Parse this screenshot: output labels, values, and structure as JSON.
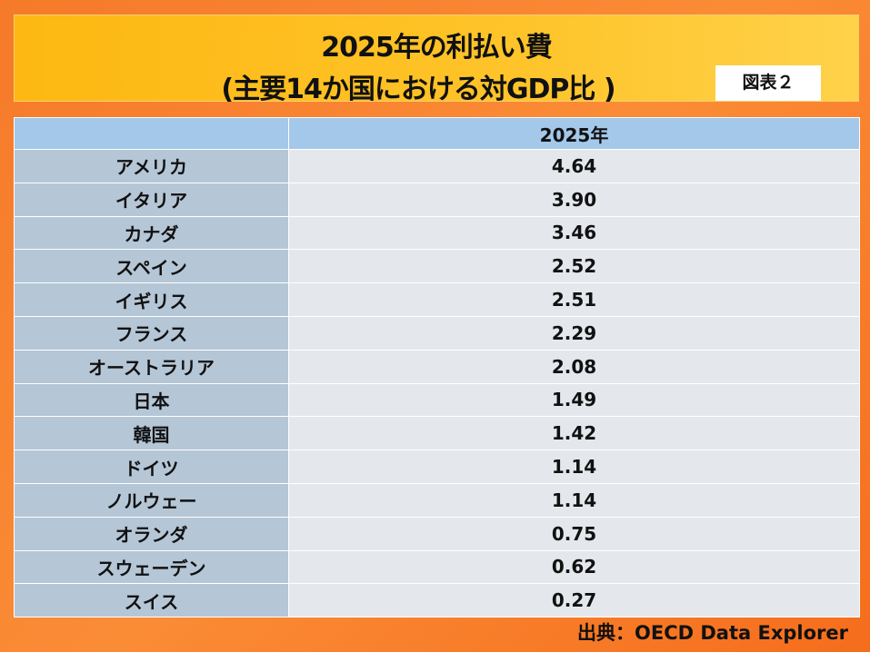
{
  "title": {
    "line1": "2025年の利払い費",
    "line2": "(主要14か国における対GDP比 )",
    "figure_label": "図表２"
  },
  "chart_data": {
    "type": "table",
    "title": "2025年の利払い費 (主要14か国における対GDP比 )",
    "columns": [
      "",
      "2025年"
    ],
    "rows": [
      {
        "country": "アメリカ",
        "value": "4.64"
      },
      {
        "country": "イタリア",
        "value": "3.90"
      },
      {
        "country": "カナダ",
        "value": "3.46"
      },
      {
        "country": "スペイン",
        "value": "2.52"
      },
      {
        "country": "イギリス",
        "value": "2.51"
      },
      {
        "country": "フランス",
        "value": "2.29"
      },
      {
        "country": "オーストラリア",
        "value": "2.08"
      },
      {
        "country": "日本",
        "value": "1.49"
      },
      {
        "country": "韓国",
        "value": "1.42"
      },
      {
        "country": "ドイツ",
        "value": "1.14"
      },
      {
        "country": "ノルウェー",
        "value": "1.14"
      },
      {
        "country": "オランダ",
        "value": "0.75"
      },
      {
        "country": "スウェーデン",
        "value": "0.62"
      },
      {
        "country": "スイス",
        "value": "0.27"
      }
    ]
  },
  "source": "出典：OECD Data Explorer"
}
